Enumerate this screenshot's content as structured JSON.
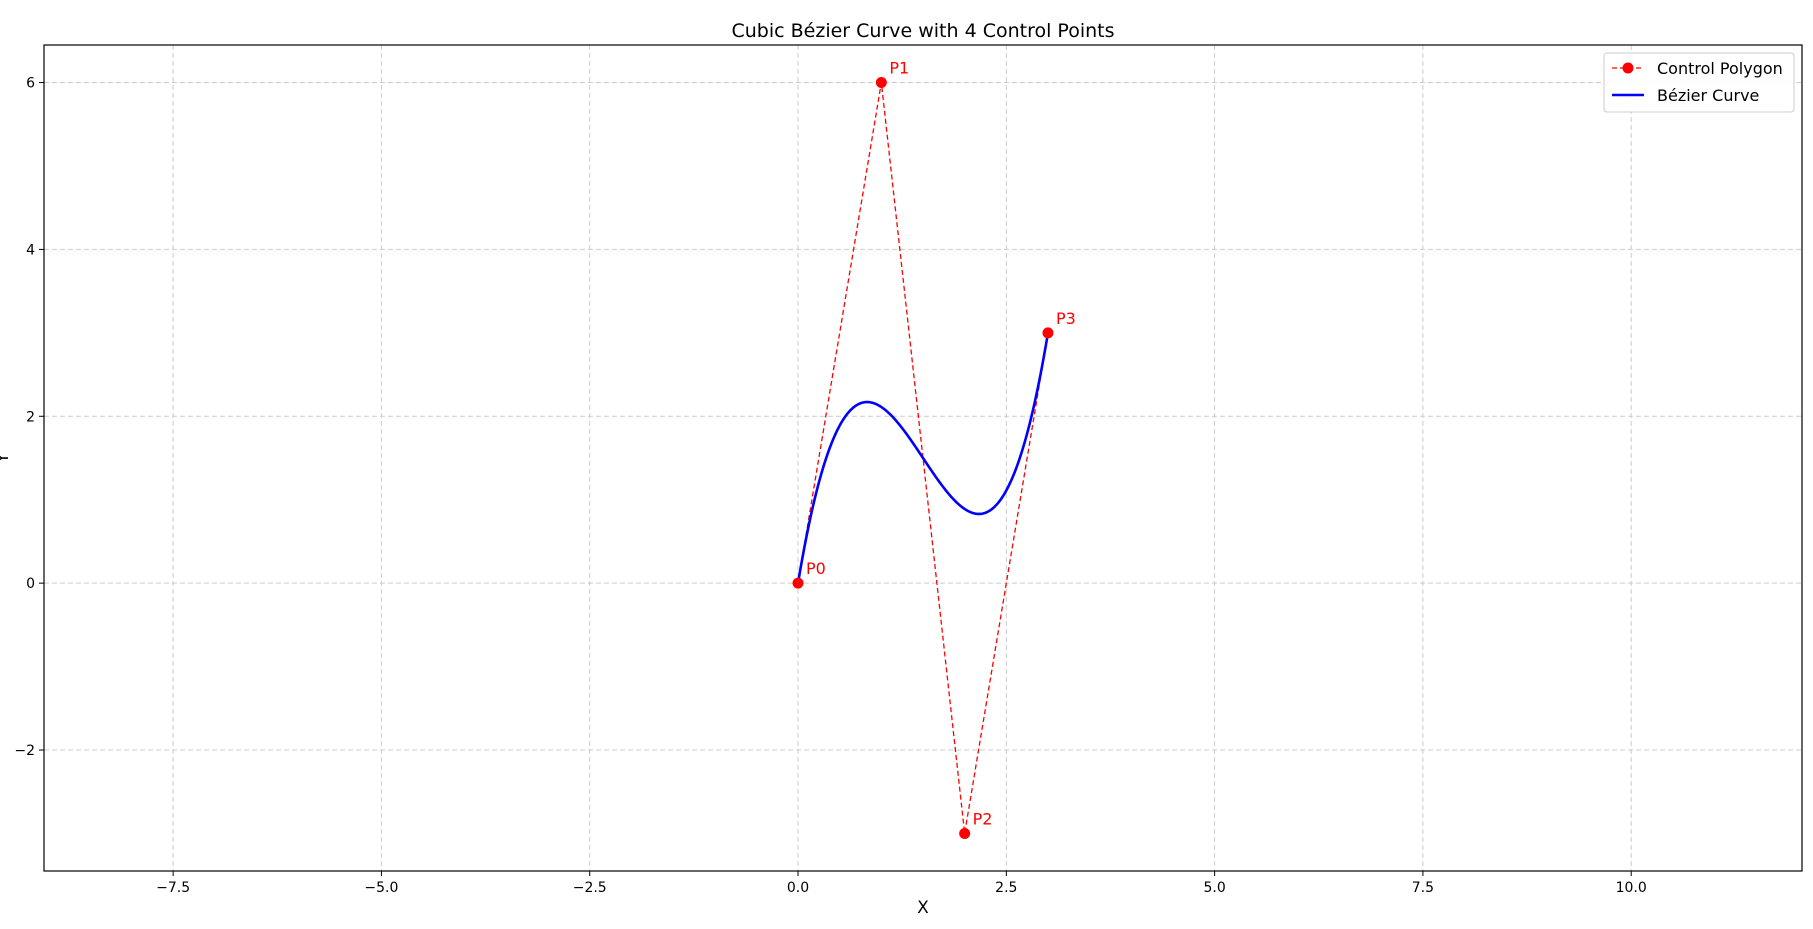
{
  "chart_data": {
    "type": "line",
    "title": "Cubic Bézier Curve with 4 Control Points",
    "xlabel": "X",
    "ylabel": "Y",
    "xlim": [
      -9.05,
      12.05
    ],
    "ylim": [
      -3.45,
      6.45
    ],
    "xticks": [
      -7.5,
      -5.0,
      -2.5,
      0.0,
      2.5,
      5.0,
      7.5,
      10.0
    ],
    "xtick_labels": [
      "−7.5",
      "−5.0",
      "−2.5",
      "0.0",
      "2.5",
      "5.0",
      "7.5",
      "10.0"
    ],
    "yticks": [
      -2,
      0,
      2,
      4,
      6
    ],
    "ytick_labels": [
      "−2",
      "0",
      "2",
      "4",
      "6"
    ],
    "grid": true,
    "legend_position": "top-right",
    "control_points": [
      {
        "label": "P0",
        "x": 0,
        "y": 0
      },
      {
        "label": "P1",
        "x": 1,
        "y": 6
      },
      {
        "label": "P2",
        "x": 2,
        "y": -3
      },
      {
        "label": "P3",
        "x": 3,
        "y": 3
      }
    ],
    "series": [
      {
        "name": "Control Polygon",
        "style": "dashed-with-markers",
        "color": "#ff0000"
      },
      {
        "name": "Bézier Curve",
        "style": "solid",
        "color": "#0000ff"
      }
    ]
  }
}
